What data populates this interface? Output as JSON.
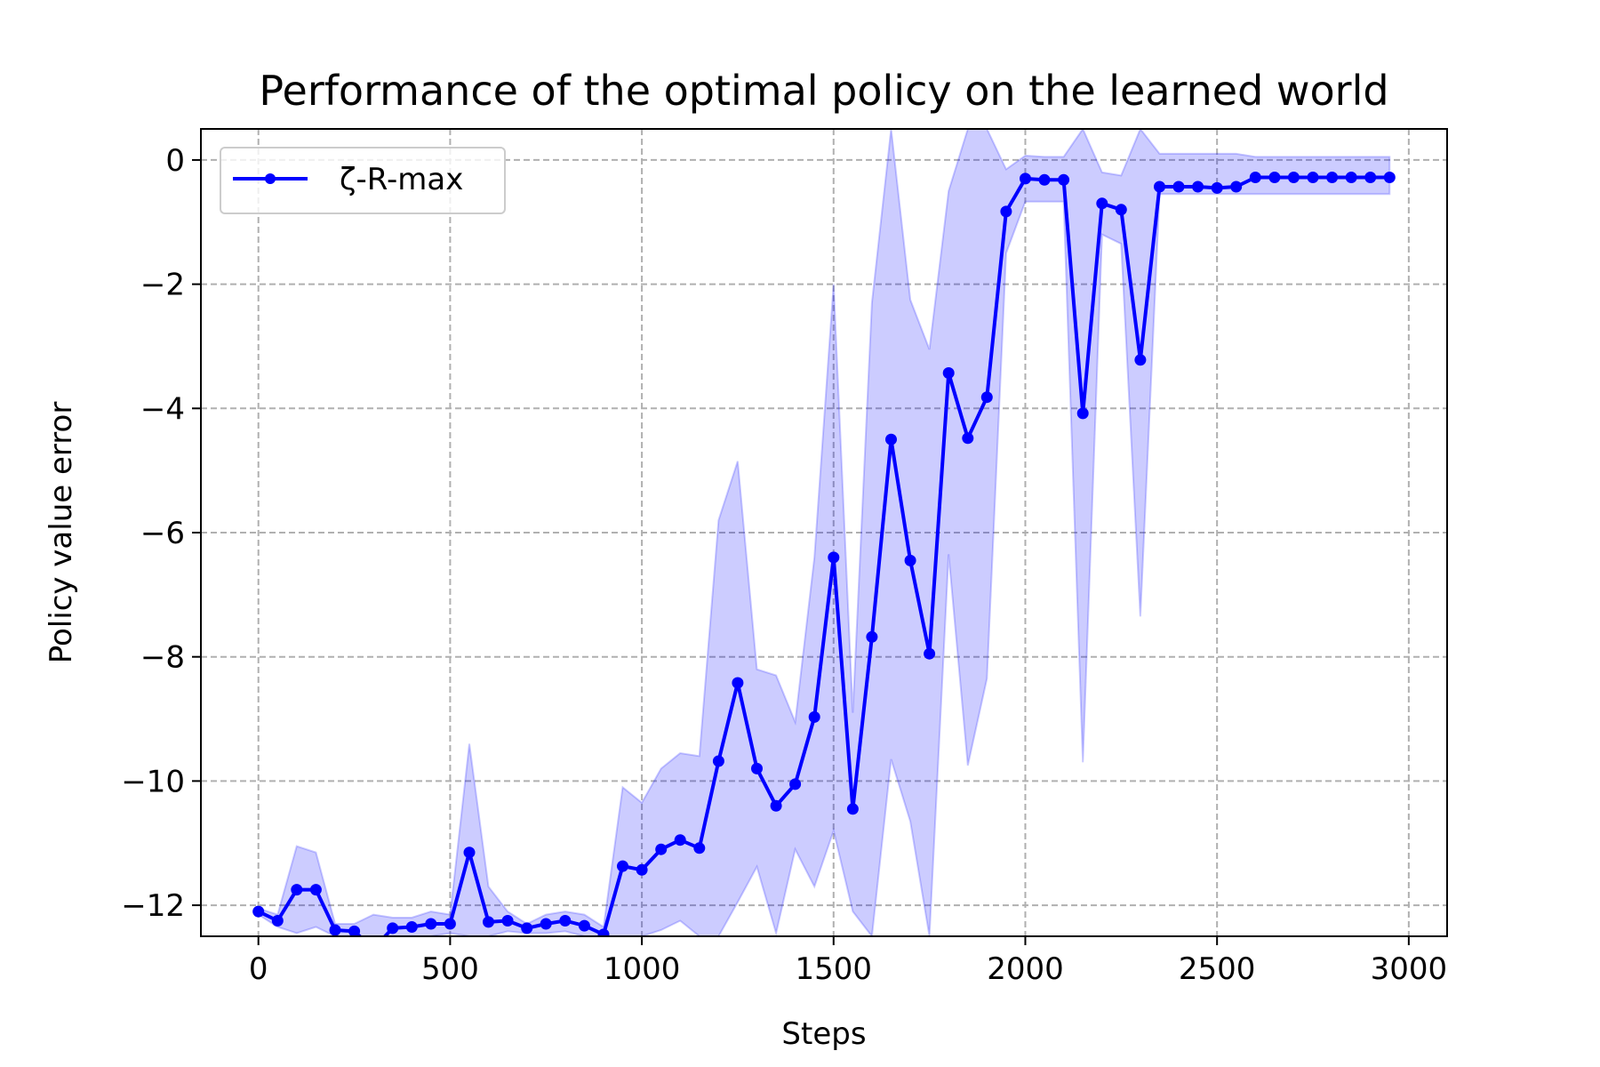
{
  "chart_data": {
    "type": "line",
    "title": "Performance of the optimal policy on the learned world",
    "xlabel": "Steps",
    "ylabel": "Policy value error",
    "xlim": [
      -150,
      3100
    ],
    "ylim": [
      -12.5,
      0.5
    ],
    "xticks": [
      0,
      500,
      1000,
      1500,
      2000,
      2500,
      3000
    ],
    "xtick_labels": [
      "0",
      "500",
      "1000",
      "1500",
      "2000",
      "2500",
      "3000"
    ],
    "yticks": [
      0,
      -2,
      -4,
      -6,
      -8,
      -10,
      -12
    ],
    "ytick_labels": [
      "0",
      "−2",
      "−4",
      "−6",
      "−8",
      "−10",
      "−12"
    ],
    "grid": true,
    "legend_position": "upper left",
    "colors": {
      "line": "#0000ff",
      "band": "#0000ff",
      "grid": "#b0b0b0"
    },
    "series": [
      {
        "name": "ζ-R-max",
        "x": [
          0,
          50,
          100,
          150,
          200,
          250,
          300,
          350,
          400,
          450,
          500,
          550,
          600,
          650,
          700,
          750,
          800,
          850,
          900,
          950,
          1000,
          1050,
          1100,
          1150,
          1200,
          1250,
          1300,
          1350,
          1400,
          1450,
          1500,
          1550,
          1600,
          1650,
          1700,
          1750,
          1800,
          1850,
          1900,
          1950,
          2000,
          2050,
          2100,
          2150,
          2200,
          2250,
          2300,
          2350,
          2400,
          2450,
          2500,
          2550,
          2600,
          2650,
          2700,
          2750,
          2800,
          2850,
          2900,
          2950
        ],
        "y": [
          -12.1,
          -12.25,
          -11.75,
          -11.75,
          -12.4,
          -12.42,
          -12.7,
          -12.37,
          -12.35,
          -12.3,
          -12.3,
          -11.15,
          -12.27,
          -12.25,
          -12.37,
          -12.3,
          -12.25,
          -12.33,
          -12.47,
          -11.37,
          -11.43,
          -11.1,
          -10.95,
          -11.08,
          -9.68,
          -8.42,
          -9.8,
          -10.4,
          -10.05,
          -8.97,
          -6.4,
          -10.45,
          -7.68,
          -4.5,
          -6.45,
          -7.95,
          -3.43,
          -4.48,
          -3.82,
          -0.83,
          -0.3,
          -0.32,
          -0.32,
          -4.08,
          -0.7,
          -0.8,
          -3.22,
          -0.43,
          -0.43,
          -0.43,
          -0.45,
          -0.43,
          -0.28,
          -0.28,
          -0.28,
          -0.28,
          -0.28,
          -0.28,
          -0.28,
          -0.28
        ],
        "upper": [
          -12.05,
          -12.15,
          -11.05,
          -11.15,
          -12.3,
          -12.3,
          -12.15,
          -12.2,
          -12.2,
          -12.1,
          -12.15,
          -9.4,
          -11.7,
          -12.1,
          -12.3,
          -12.15,
          -12.1,
          -12.15,
          -12.35,
          -10.1,
          -10.35,
          -9.8,
          -9.55,
          -9.6,
          -5.8,
          -4.85,
          -8.2,
          -8.3,
          -9.05,
          -6.4,
          -2.0,
          -8.9,
          -2.3,
          0.5,
          -2.25,
          -3.05,
          -0.5,
          0.5,
          0.5,
          -0.15,
          0.07,
          0.05,
          0.05,
          0.5,
          -0.2,
          -0.25,
          0.5,
          0.1,
          0.1,
          0.1,
          0.1,
          0.1,
          0.05,
          0.05,
          0.05,
          0.05,
          0.05,
          0.05,
          0.05,
          0.05
        ],
        "lower": [
          -12.15,
          -12.35,
          -12.45,
          -12.35,
          -12.5,
          -12.5,
          -12.5,
          -12.5,
          -12.5,
          -12.5,
          -12.45,
          -12.5,
          -12.5,
          -12.42,
          -12.45,
          -12.45,
          -12.42,
          -12.5,
          -12.5,
          -12.5,
          -12.5,
          -12.4,
          -12.25,
          -12.5,
          -12.5,
          -11.95,
          -11.38,
          -12.45,
          -11.1,
          -11.7,
          -10.8,
          -12.1,
          -12.5,
          -9.65,
          -10.65,
          -12.5,
          -6.35,
          -9.75,
          -8.35,
          -1.5,
          -0.67,
          -0.67,
          -0.67,
          -9.7,
          -1.2,
          -1.35,
          -7.35,
          -0.55,
          -0.55,
          -0.55,
          -0.55,
          -0.55,
          -0.55,
          -0.55,
          -0.55,
          -0.55,
          -0.55,
          -0.55,
          -0.55,
          -0.55
        ]
      }
    ]
  }
}
